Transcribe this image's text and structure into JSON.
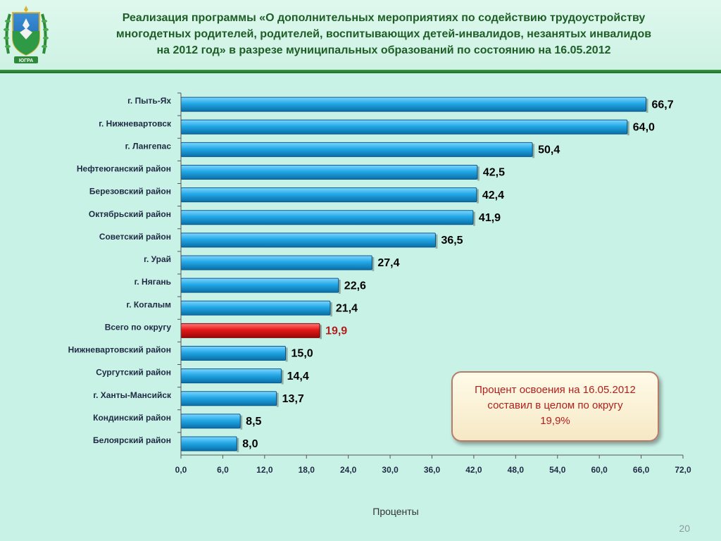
{
  "header": {
    "title_lines": [
      "Реализация программы  «О дополнительных мероприятиях по содействию трудоустройству",
      "многодетных родителей, родителей, воспитывающих детей-инвалидов, незанятых инвалидов",
      "на 2012 год» в разрезе муниципальных образований по состоянию на 16.05.2012"
    ],
    "emblem_icon": "coat-of-arms-emblem",
    "emblem_text": "ЮГРА"
  },
  "chart_data": {
    "type": "bar",
    "orientation": "horizontal",
    "categories": [
      "г. Пыть-Ях",
      "г. Нижневартовск",
      "г. Лангепас",
      "Нефтеюганский район",
      "Березовский район",
      "Октябрьский район",
      "Советский район",
      "г. Урай",
      "г. Нягань",
      "г. Когалым",
      "Всего по округу",
      "Нижневартовский район",
      "Сургутский район",
      "г. Ханты-Мансийск",
      "Кондинский район",
      "Белоярский  район"
    ],
    "values": [
      66.7,
      64.0,
      50.4,
      42.5,
      42.4,
      41.9,
      36.5,
      27.4,
      22.6,
      21.4,
      19.9,
      15.0,
      14.4,
      13.7,
      8.5,
      8.0
    ],
    "value_labels": [
      "66,7",
      "64,0",
      "50,4",
      "42,5",
      "42,4",
      "41,9",
      "36,5",
      "27,4",
      "22,6",
      "21,4",
      "19,9",
      "15,0",
      "14,4",
      "13,7",
      "8,5",
      "8,0"
    ],
    "highlight_index": 10,
    "xlim": [
      0,
      72
    ],
    "xticks": [
      0,
      6,
      12,
      18,
      24,
      30,
      36,
      42,
      48,
      54,
      60,
      66,
      72
    ],
    "xtick_labels": [
      "0,0",
      "6,0",
      "12,0",
      "18,0",
      "24,0",
      "30,0",
      "36,0",
      "42,0",
      "48,0",
      "54,0",
      "60,0",
      "66,0",
      "72,0"
    ],
    "xlabel": "Проценты",
    "grid": false,
    "legend": "none",
    "colors": {
      "bar": "#1aa3e0",
      "bar_highlight": "#e01616",
      "label_highlight": "#b01e1e"
    }
  },
  "callout": {
    "lines": [
      "Процент освоения на 16.05.2012",
      "составил в целом по округу",
      "19,9%"
    ]
  },
  "footer": {
    "page_number": "20"
  }
}
